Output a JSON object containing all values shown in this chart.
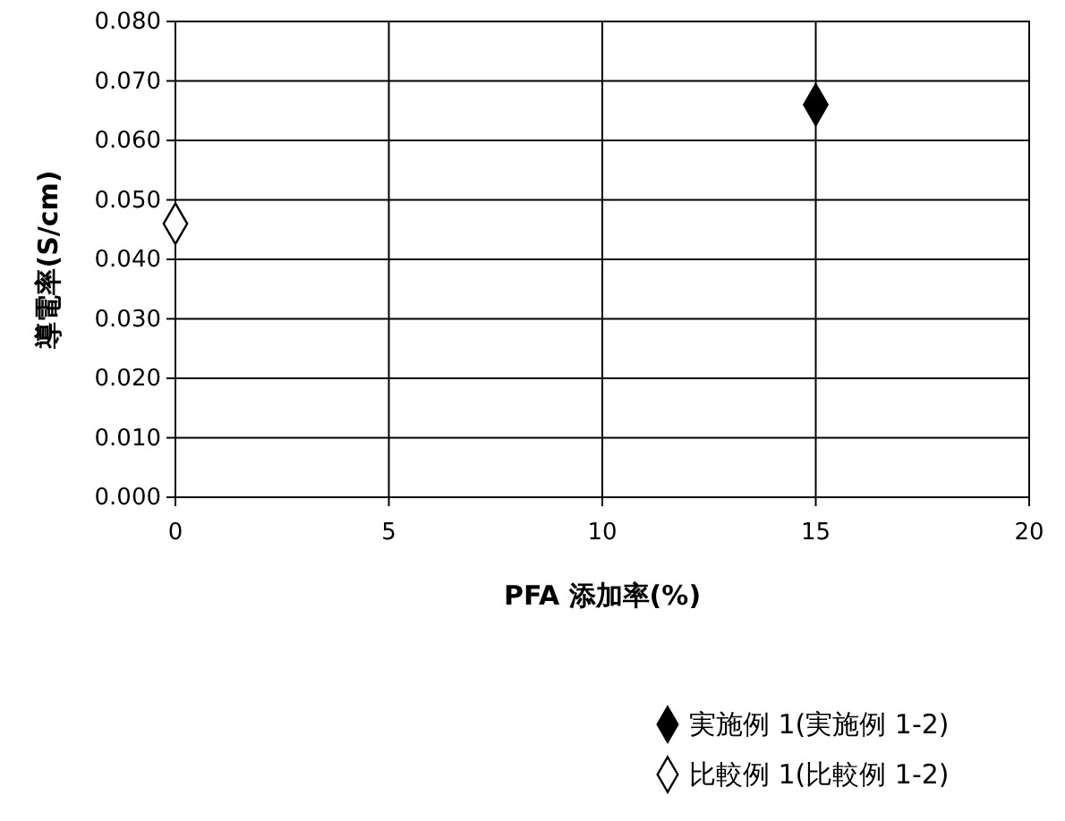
{
  "chart_data": {
    "type": "scatter",
    "xlabel": "PFA 添加率(%)",
    "ylabel": "導電率(S/cm)",
    "xlim": [
      0,
      20
    ],
    "xticks": [
      0,
      5,
      10,
      15,
      20
    ],
    "ylim": [
      0,
      0.08
    ],
    "yticks": [
      {
        "value": 0,
        "label": "0.000"
      },
      {
        "value": 0.01,
        "label": "0.010"
      },
      {
        "value": 0.02,
        "label": "0.020"
      },
      {
        "value": 0.03,
        "label": "0.030"
      },
      {
        "value": 0.04,
        "label": "0.040"
      },
      {
        "value": 0.05,
        "label": "0.050"
      },
      {
        "value": 0.06,
        "label": "0.060"
      },
      {
        "value": 0.07,
        "label": "0.070"
      },
      {
        "value": 0.08,
        "label": "0.080"
      }
    ],
    "grid": true,
    "marker": "diamond",
    "legend": "bottom right",
    "series": [
      {
        "name": "実施例 1(実施例 1-2)",
        "color": "#000000",
        "x": [
          15
        ],
        "values": [
          0.066
        ]
      },
      {
        "name": "比較例 1(比較例 1-2)",
        "color": "#ffffff",
        "x": [
          0
        ],
        "values": [
          0.046
        ]
      }
    ]
  }
}
